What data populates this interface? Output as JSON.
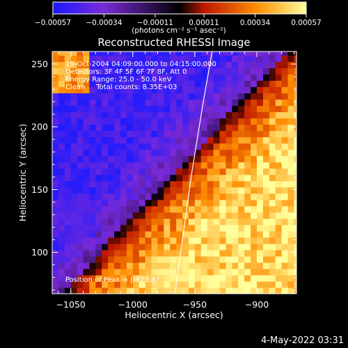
{
  "chart_data": {
    "type": "heatmap",
    "title": "Reconstructed RHESSI Image",
    "xlabel": "Heliocentric X (arcsec)",
    "ylabel": "Heliocentric Y (arcsec)",
    "xlim": [
      -1065,
      -868
    ],
    "ylim": [
      67,
      260
    ],
    "x_ticks": [
      -1050,
      -1000,
      -950,
      -900
    ],
    "x_tick_labels": [
      "−1050",
      "−1000",
      "−950",
      "−900"
    ],
    "y_ticks": [
      100,
      150,
      200,
      250
    ],
    "y_tick_labels": [
      "100",
      "150",
      "200",
      "250"
    ],
    "colorbar": {
      "range": [
        -0.00057,
        0.00057
      ],
      "ticks": [
        -0.00057,
        -0.00034,
        -0.00011,
        0.00011,
        0.00034,
        0.00057
      ],
      "tick_labels": [
        "−0.00057",
        "−0.00034",
        "−0.00011",
        "0.00011",
        "0.00034",
        "0.00057"
      ],
      "units_label": "(photons cm⁻² s⁻¹ asec⁻²)",
      "colors": [
        "#1a1aff",
        "#7a2ad8",
        "#000000",
        "#c01800",
        "#ff8c00",
        "#ffff9a"
      ]
    },
    "limb_curve": [
      [
        -966,
        67
      ],
      [
        -960,
        110
      ],
      [
        -953,
        160
      ],
      [
        -944,
        215
      ],
      [
        -936,
        260
      ]
    ]
  },
  "annotations": {
    "time_range": "19-Oct-2004 04:09:00.000 to 04:15:00.000",
    "detectors": "Detectors: 3F 4F 5F 6F 7F 8F, Att 0",
    "energy": "Energy Range: 25.0 - 50.0 keV",
    "method": "Clean     Total counts: 8.35E+03",
    "peak": "Position of Peak = [-973,87]"
  },
  "footer": {
    "timestamp": "4-May-2022 03:31"
  }
}
